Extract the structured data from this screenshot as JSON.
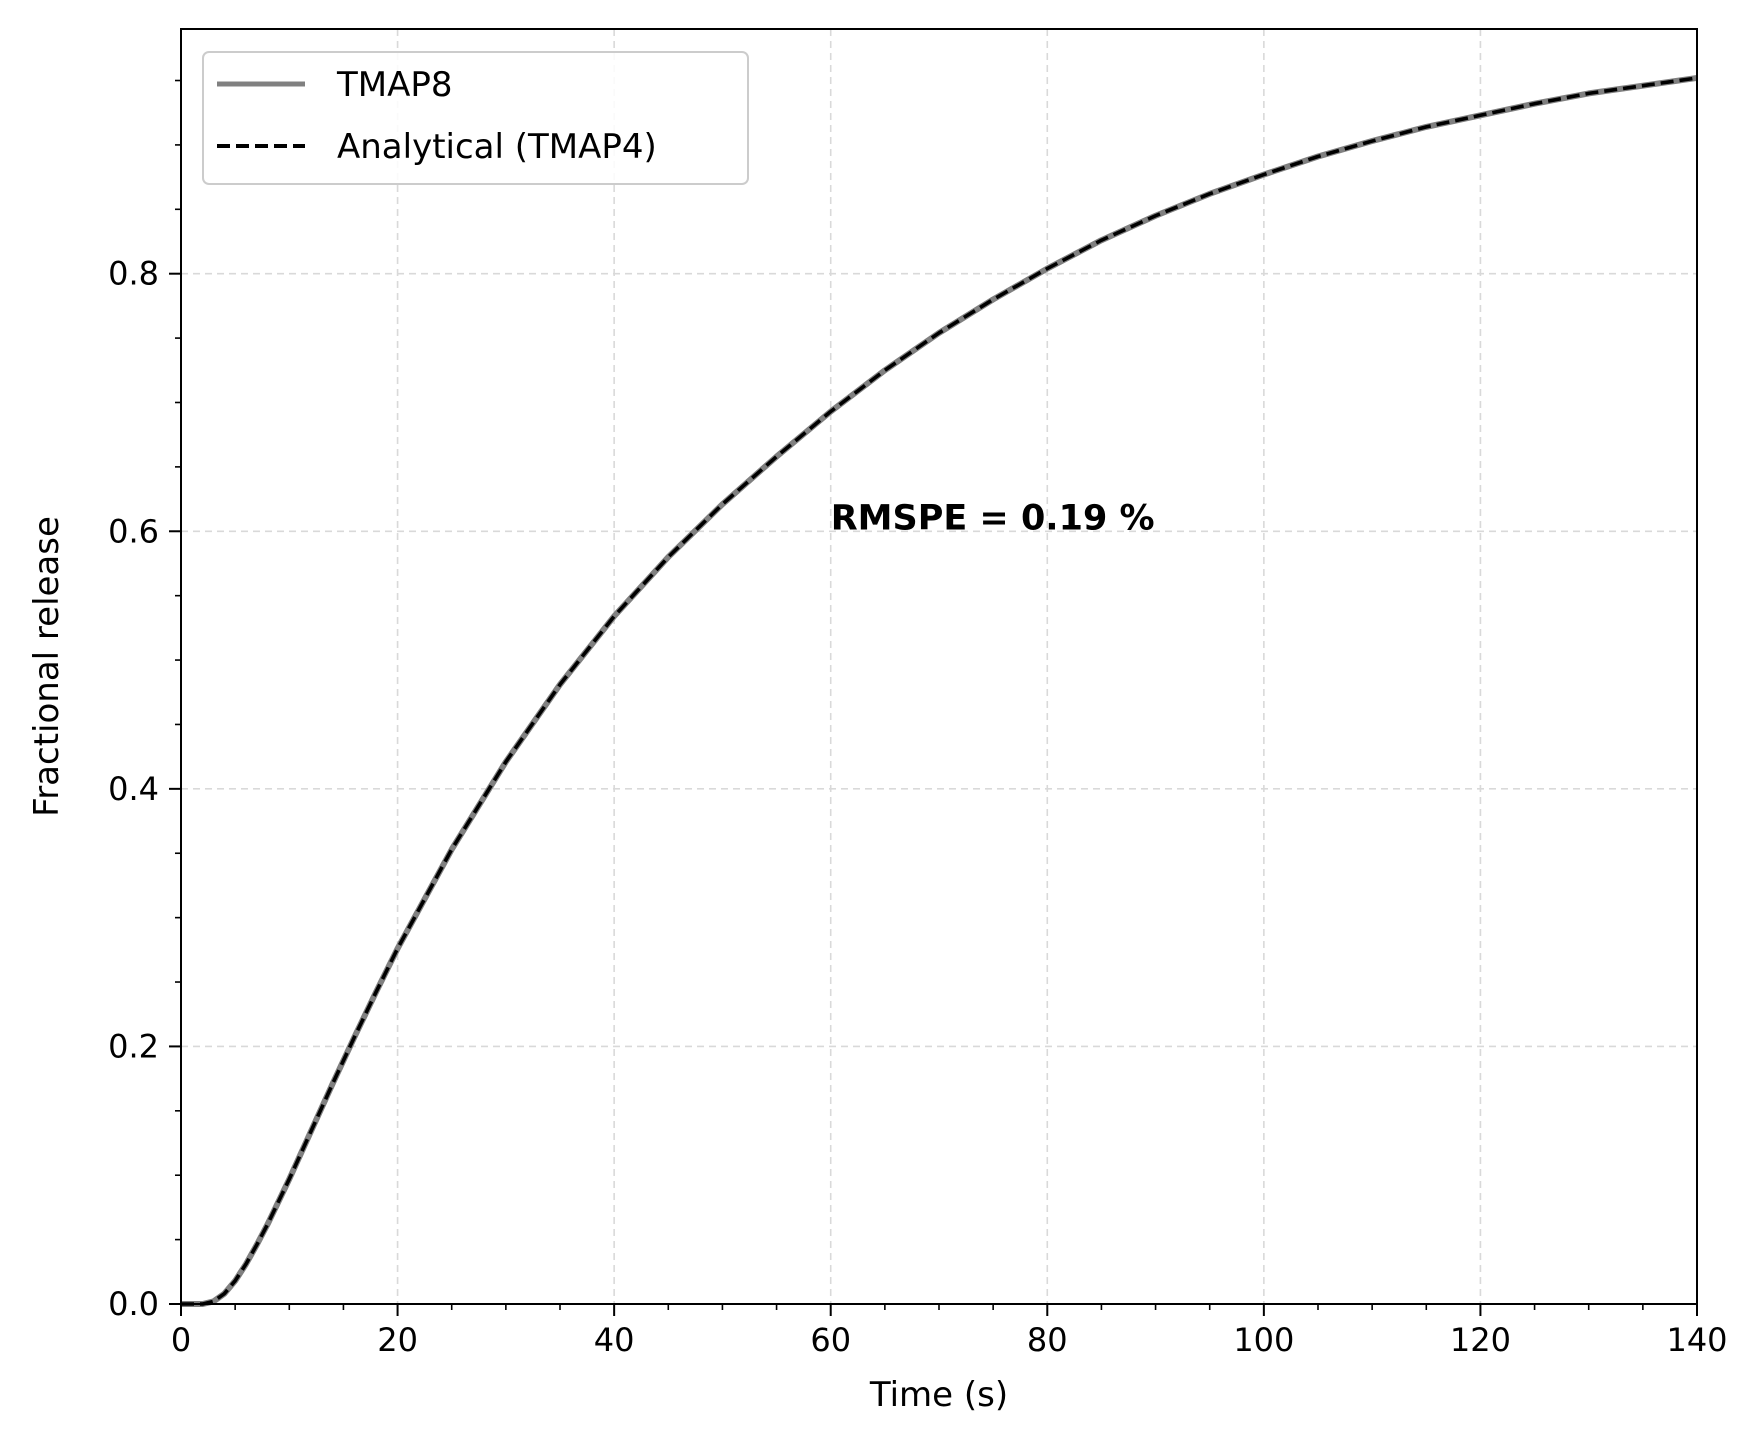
{
  "chart_data": {
    "type": "line",
    "title": "",
    "xlabel": "Time (s)",
    "ylabel": "Fractional release",
    "xlim": [
      0,
      140
    ],
    "ylim": [
      0,
      0.99
    ],
    "x_ticks": [
      0,
      20,
      40,
      60,
      80,
      100,
      120,
      140
    ],
    "x_tick_labels": [
      "0",
      "20",
      "40",
      "60",
      "80",
      "100",
      "120",
      "140"
    ],
    "y_ticks": [
      0.0,
      0.2,
      0.4,
      0.6,
      0.8
    ],
    "y_tick_labels": [
      "0.0",
      "0.2",
      "0.4",
      "0.6",
      "0.8"
    ],
    "grid": true,
    "legend_position": "top-left",
    "x": [
      0,
      2,
      3,
      4,
      5,
      6,
      7,
      8,
      10,
      12,
      14,
      16,
      18,
      20,
      25,
      30,
      35,
      40,
      45,
      50,
      55,
      60,
      65,
      70,
      75,
      80,
      85,
      90,
      95,
      100,
      105,
      110,
      115,
      120,
      125,
      130,
      135,
      140
    ],
    "series": [
      {
        "name": "TMAP8",
        "color": "#808080",
        "style": "solid",
        "values": [
          0.0,
          0.0,
          0.002,
          0.008,
          0.018,
          0.031,
          0.046,
          0.062,
          0.097,
          0.134,
          0.171,
          0.207,
          0.242,
          0.276,
          0.353,
          0.421,
          0.481,
          0.534,
          0.58,
          0.621,
          0.658,
          0.693,
          0.725,
          0.754,
          0.78,
          0.804,
          0.826,
          0.845,
          0.862,
          0.877,
          0.891,
          0.903,
          0.914,
          0.923,
          0.932,
          0.94,
          0.946,
          0.952
        ]
      },
      {
        "name": "Analytical (TMAP4)",
        "color": "#000000",
        "style": "dashed",
        "values": [
          0.0,
          0.0,
          0.002,
          0.008,
          0.018,
          0.031,
          0.046,
          0.062,
          0.097,
          0.134,
          0.171,
          0.207,
          0.242,
          0.276,
          0.353,
          0.421,
          0.481,
          0.534,
          0.58,
          0.621,
          0.658,
          0.693,
          0.725,
          0.754,
          0.78,
          0.804,
          0.826,
          0.845,
          0.862,
          0.877,
          0.891,
          0.903,
          0.914,
          0.923,
          0.932,
          0.94,
          0.946,
          0.952
        ]
      }
    ],
    "annotations": [
      {
        "text": "RMSPE = 0.19 %",
        "x": 60,
        "y": 0.6
      }
    ]
  }
}
